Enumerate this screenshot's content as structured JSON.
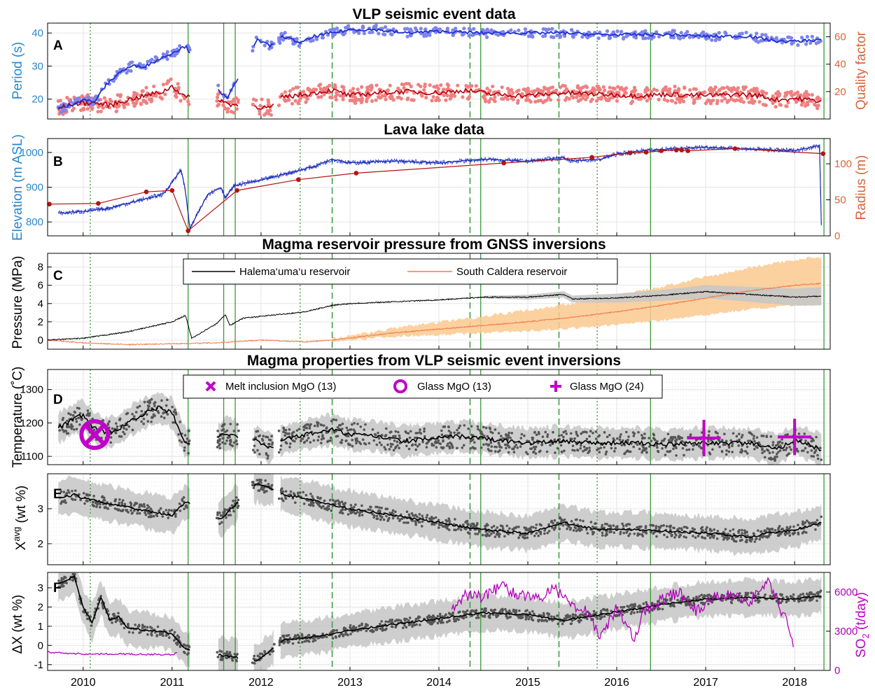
{
  "colors": {
    "period": "#1f2fd0",
    "period_pts": "#7d84ea",
    "period_axis": "#2a87c9",
    "quality": "#b3000d",
    "quality_pts": "#f08080",
    "quality_axis": "#d8653a",
    "lake_elev": "#3445d6",
    "lake_radius": "#b3140f",
    "halema": "#000000",
    "south": "#f07a4a",
    "south_band": "#fbc98f",
    "gray_band": "#c6c6c6",
    "scatter": "#555555",
    "so2": "#b000b8",
    "green": "#3a9a3a",
    "magenta": "#c000c8"
  },
  "chart_data": [
    {
      "id": "A",
      "type": "line",
      "title": "VLP seismic event data",
      "panel_label": "A",
      "xlim": [
        2009.6,
        2018.4
      ],
      "ylabel_left": "Period (s)",
      "ylim_left": [
        14,
        43
      ],
      "yticks_left": [
        20,
        30,
        40
      ],
      "ylabel_right": "Quality factor",
      "ylim_right": [
        0,
        70
      ],
      "yticks_right": [
        20,
        40,
        60
      ],
      "series": [
        {
          "axis": "left",
          "x": [
            2009.72,
            2009.85,
            2010.0,
            2010.12,
            2010.25,
            2010.4,
            2010.55,
            2010.7,
            2010.85,
            2011.0,
            2011.15,
            2011.55,
            2011.62,
            2011.95,
            2012.1,
            2012.25,
            2012.45,
            2012.6,
            2012.8,
            2013.0,
            2013.3,
            2013.6,
            2014.0,
            2014.5,
            2015.0,
            2015.4,
            2015.8,
            2016.2,
            2016.6,
            2017.0,
            2017.5,
            2017.8,
            2018.0,
            2018.3
          ],
          "y": [
            17,
            18,
            20,
            19,
            24,
            28,
            30,
            30,
            32,
            34,
            36,
            22,
            20,
            38,
            36,
            39,
            37,
            39,
            40,
            41,
            41,
            40,
            40.5,
            40,
            40,
            40,
            39.5,
            39.5,
            39.5,
            39,
            39,
            37.5,
            37.5,
            38
          ]
        },
        {
          "axis": "right",
          "x": [
            2009.72,
            2009.9,
            2010.1,
            2010.3,
            2010.5,
            2010.7,
            2010.9,
            2011.0,
            2011.15,
            2011.55,
            2011.62,
            2011.95,
            2012.1,
            2012.25,
            2012.5,
            2012.8,
            2013.0,
            2013.3,
            2013.6,
            2014.0,
            2014.3,
            2014.6,
            2015.0,
            2015.4,
            2015.8,
            2016.2,
            2016.6,
            2017.0,
            2017.4,
            2017.6,
            2017.8,
            2018.0,
            2018.3
          ],
          "y": [
            8,
            11,
            12,
            10,
            14,
            17,
            20,
            24,
            16,
            14,
            11,
            9,
            8,
            16,
            18,
            21,
            17,
            19,
            20,
            19,
            21,
            18,
            17,
            19,
            18,
            17,
            18,
            17,
            18,
            17,
            14,
            15,
            13
          ]
        }
      ]
    },
    {
      "id": "B",
      "type": "line",
      "title": "Lava lake data",
      "panel_label": "B",
      "xlim": [
        2009.6,
        2018.4
      ],
      "ylabel_left": "Elevation (m ASL)",
      "ylim_left": [
        760,
        1040
      ],
      "yticks_left": [
        800,
        900,
        1000
      ],
      "ylabel_right": "Radius (m)",
      "ylim_right": [
        0,
        135
      ],
      "yticks_right": [
        0,
        50,
        100
      ],
      "series": [
        {
          "axis": "left",
          "x": [
            2009.72,
            2010.0,
            2010.3,
            2010.6,
            2010.9,
            2011.1,
            2011.15,
            2011.2,
            2011.4,
            2011.55,
            2011.6,
            2011.7,
            2012.0,
            2012.3,
            2012.6,
            2012.8,
            2013.0,
            2013.5,
            2014.0,
            2014.5,
            2015.0,
            2015.4,
            2015.5,
            2015.8,
            2016.0,
            2016.3,
            2016.6,
            2017.0,
            2017.5,
            2018.0,
            2018.28,
            2018.3
          ],
          "y": [
            825,
            830,
            840,
            860,
            880,
            950,
            890,
            780,
            880,
            900,
            870,
            905,
            920,
            940,
            960,
            980,
            970,
            975,
            970,
            980,
            975,
            985,
            975,
            980,
            995,
            1005,
            1010,
            1015,
            1010,
            1005,
            1020,
            790
          ]
        },
        {
          "axis": "right",
          "x": [
            2009.62,
            2010.17,
            2010.71,
            2011.0,
            2011.18,
            2011.73,
            2012.42,
            2013.07,
            2014.73,
            2015.72,
            2016.15,
            2016.33,
            2016.5,
            2016.67,
            2016.73,
            2016.8,
            2017.33,
            2018.32
          ],
          "y": [
            44,
            45,
            61,
            63,
            7,
            63,
            78,
            87,
            101,
            109,
            115,
            116,
            118,
            119,
            119,
            118,
            121,
            114
          ]
        }
      ],
      "markers": "radius series shown as dots"
    },
    {
      "id": "C",
      "type": "area",
      "title": "Magma reservoir pressure from GNSS inversions",
      "panel_label": "C",
      "xlim": [
        2009.6,
        2018.4
      ],
      "ylabel_left": "Pressure (MPa)",
      "ylim_left": [
        -1,
        9.5
      ],
      "yticks_left": [
        0,
        2,
        4,
        6,
        8
      ],
      "legend": [
        "Halema‘uma‘u reservoir",
        "South Caldera reservoir"
      ],
      "legend_position": "top-center",
      "series": [
        {
          "name": "Halema‘uma‘u reservoir",
          "x": [
            2009.6,
            2010.0,
            2010.5,
            2011.0,
            2011.15,
            2011.22,
            2011.5,
            2011.6,
            2011.65,
            2011.8,
            2012.0,
            2012.5,
            2012.8,
            2013.0,
            2013.5,
            2014.0,
            2014.5,
            2015.0,
            2015.4,
            2015.5,
            2016.0,
            2016.5,
            2017.0,
            2017.5,
            2018.0,
            2018.3
          ],
          "y": [
            0,
            0.2,
            0.9,
            2.0,
            2.7,
            0.2,
            1.8,
            2.8,
            1.6,
            2.4,
            2.6,
            3.1,
            3.8,
            4.0,
            4.2,
            4.4,
            4.7,
            4.7,
            5.0,
            4.5,
            4.6,
            4.9,
            5.3,
            5.0,
            4.7,
            4.8
          ]
        },
        {
          "name": "South Caldera reservoir",
          "x": [
            2009.6,
            2010.0,
            2010.5,
            2011.0,
            2011.5,
            2012.0,
            2012.5,
            2012.8,
            2013.5,
            2014.0,
            2014.5,
            2015.0,
            2015.5,
            2016.0,
            2016.5,
            2017.0,
            2017.5,
            2018.0,
            2018.3
          ],
          "y": [
            0,
            -0.3,
            -0.5,
            -0.4,
            -0.3,
            0,
            -0.2,
            0,
            0.8,
            1.2,
            1.6,
            2.0,
            2.5,
            3.1,
            3.8,
            4.6,
            5.4,
            6.0,
            6.2
          ]
        }
      ]
    },
    {
      "id": "D",
      "type": "scatter",
      "title": "Magma properties from VLP seismic event inversions",
      "panel_label": "D",
      "xlim": [
        2009.6,
        2018.4
      ],
      "ylabel_left": "Temperature (˚C)",
      "ylim_left": [
        1075,
        1360
      ],
      "yticks_left": [
        1100,
        1200,
        1300
      ],
      "legend": [
        "Melt inclusion MgO (13)",
        "Glass MgO (13)",
        "Glass MgO (24)"
      ],
      "legend_position": "top-center",
      "reference_markers": [
        {
          "type": "x",
          "x": 2010.13,
          "y": 1165
        },
        {
          "type": "o",
          "x": 2010.13,
          "y": 1165
        },
        {
          "type": "+",
          "x": 2016.98,
          "y": 1155
        },
        {
          "type": "+",
          "x": 2018.0,
          "y": 1158
        }
      ],
      "series": [
        {
          "x": [
            2009.72,
            2009.85,
            2010.0,
            2010.1,
            2010.25,
            2010.4,
            2010.55,
            2010.7,
            2010.85,
            2011.0,
            2011.15,
            2011.55,
            2011.62,
            2011.95,
            2012.1,
            2012.25,
            2012.5,
            2012.8,
            2013.0,
            2013.3,
            2013.6,
            2014.0,
            2014.3,
            2014.6,
            2015.0,
            2015.4,
            2015.8,
            2016.2,
            2016.6,
            2017.0,
            2017.5,
            2017.8,
            2018.0,
            2018.3
          ],
          "y": [
            1185,
            1205,
            1225,
            1190,
            1170,
            1180,
            1210,
            1230,
            1245,
            1230,
            1140,
            1160,
            1170,
            1145,
            1125,
            1150,
            1165,
            1180,
            1165,
            1160,
            1145,
            1155,
            1160,
            1150,
            1140,
            1145,
            1140,
            1140,
            1135,
            1140,
            1140,
            1120,
            1150,
            1120
          ]
        }
      ]
    },
    {
      "id": "E",
      "type": "scatter",
      "title": "",
      "panel_label": "E",
      "xlim": [
        2009.6,
        2018.4
      ],
      "ylabel_left": "Xavg (wt %)",
      "ylim_left": [
        1.4,
        4.0
      ],
      "yticks_left": [
        2,
        3
      ],
      "series": [
        {
          "x": [
            2009.72,
            2009.9,
            2010.0,
            2010.2,
            2010.4,
            2010.6,
            2010.8,
            2011.0,
            2011.15,
            2011.55,
            2011.62,
            2011.95,
            2012.1,
            2012.25,
            2012.5,
            2012.8,
            2013.0,
            2013.5,
            2014.0,
            2014.5,
            2015.0,
            2015.4,
            2015.8,
            2016.2,
            2016.6,
            2017.0,
            2017.5,
            2017.7,
            2018.0,
            2018.3
          ],
          "y": [
            3.3,
            3.4,
            3.3,
            3.2,
            3.1,
            3.0,
            2.9,
            2.8,
            3.2,
            2.7,
            2.9,
            3.7,
            3.6,
            3.4,
            3.3,
            3.1,
            3.0,
            2.8,
            2.6,
            2.4,
            2.3,
            2.6,
            2.4,
            2.4,
            2.35,
            2.3,
            2.2,
            2.3,
            2.4,
            2.6
          ]
        }
      ]
    },
    {
      "id": "F",
      "type": "line",
      "title": "",
      "panel_label": "F",
      "xlim": [
        2009.6,
        2018.4
      ],
      "ylabel_left": "ΔX (wt %)",
      "ylim_left": [
        -1.3,
        3.8
      ],
      "yticks_left": [
        -1,
        0,
        1,
        2,
        3
      ],
      "ylabel_right": "SO2 (t/day)",
      "ylim_right": [
        0,
        7500
      ],
      "yticks_right": [
        0,
        3000,
        6000
      ],
      "series": [
        {
          "axis": "left",
          "x": [
            2009.72,
            2009.9,
            2010.0,
            2010.1,
            2010.2,
            2010.3,
            2010.4,
            2010.5,
            2010.7,
            2010.9,
            2011.0,
            2011.15,
            2011.95,
            2012.1,
            2012.25,
            2012.5,
            2012.8,
            2013.0,
            2013.5,
            2014.0,
            2014.5,
            2015.0,
            2015.4,
            2015.8,
            2016.2,
            2016.6,
            2017.0,
            2017.5,
            2018.0,
            2018.3
          ],
          "y": [
            3.2,
            3.6,
            2.0,
            1.2,
            2.5,
            1.3,
            1.5,
            0.9,
            0.8,
            0.7,
            0.6,
            -0.2,
            -0.8,
            -0.3,
            0.3,
            0.4,
            0.6,
            0.8,
            1.1,
            1.4,
            1.7,
            1.6,
            1.3,
            1.6,
            1.9,
            2.2,
            2.4,
            2.5,
            2.4,
            2.6
          ]
        },
        {
          "axis": "right",
          "x": [
            2009.6,
            2010.0,
            2010.5,
            2011.0,
            2011.05,
            2014.15,
            2014.3,
            2014.5,
            2014.7,
            2014.9,
            2015.1,
            2015.3,
            2015.5,
            2015.7,
            2015.8,
            2016.0,
            2016.2,
            2016.3,
            2016.5,
            2016.7,
            2016.9,
            2017.1,
            2017.3,
            2017.5,
            2017.7,
            2017.9,
            2018.0
          ],
          "y": [
            1400,
            1250,
            1250,
            1200,
            1350,
            4500,
            5800,
            5600,
            6500,
            5800,
            5500,
            6200,
            5000,
            4500,
            2200,
            4800,
            2500,
            4500,
            5400,
            6000,
            4500,
            5600,
            5800,
            5300,
            6700,
            3900,
            1400
          ]
        }
      ]
    }
  ],
  "x_axis": {
    "ticks": [
      "2010",
      "2011",
      "2012",
      "2013",
      "2014",
      "2015",
      "2016",
      "2017",
      "2018"
    ]
  },
  "events": {
    "green_solid": [
      2011.18,
      2011.58,
      2011.71,
      2014.47,
      2016.38,
      2018.33
    ],
    "green_dashed": [
      2012.8,
      2014.35,
      2015.35
    ],
    "green_dotted": [
      2010.08,
      2012.44,
      2015.78
    ]
  }
}
